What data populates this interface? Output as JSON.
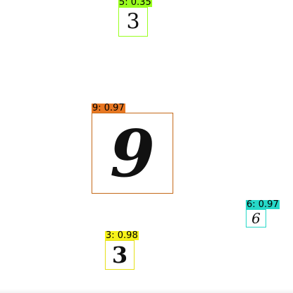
{
  "detections": [
    {
      "id": "det-5-top",
      "label": "5: 0.35",
      "digit": "3",
      "color": "#9aff1f"
    },
    {
      "id": "det-9-center",
      "label": "9: 0.97",
      "digit": "9",
      "color": "#e87722"
    },
    {
      "id": "det-6-right",
      "label": "6: 0.97",
      "digit": "6",
      "color": "#26d8c8"
    },
    {
      "id": "det-3-bottom",
      "label": "3: 0.98",
      "digit": "3",
      "color": "#f6f21a"
    }
  ]
}
